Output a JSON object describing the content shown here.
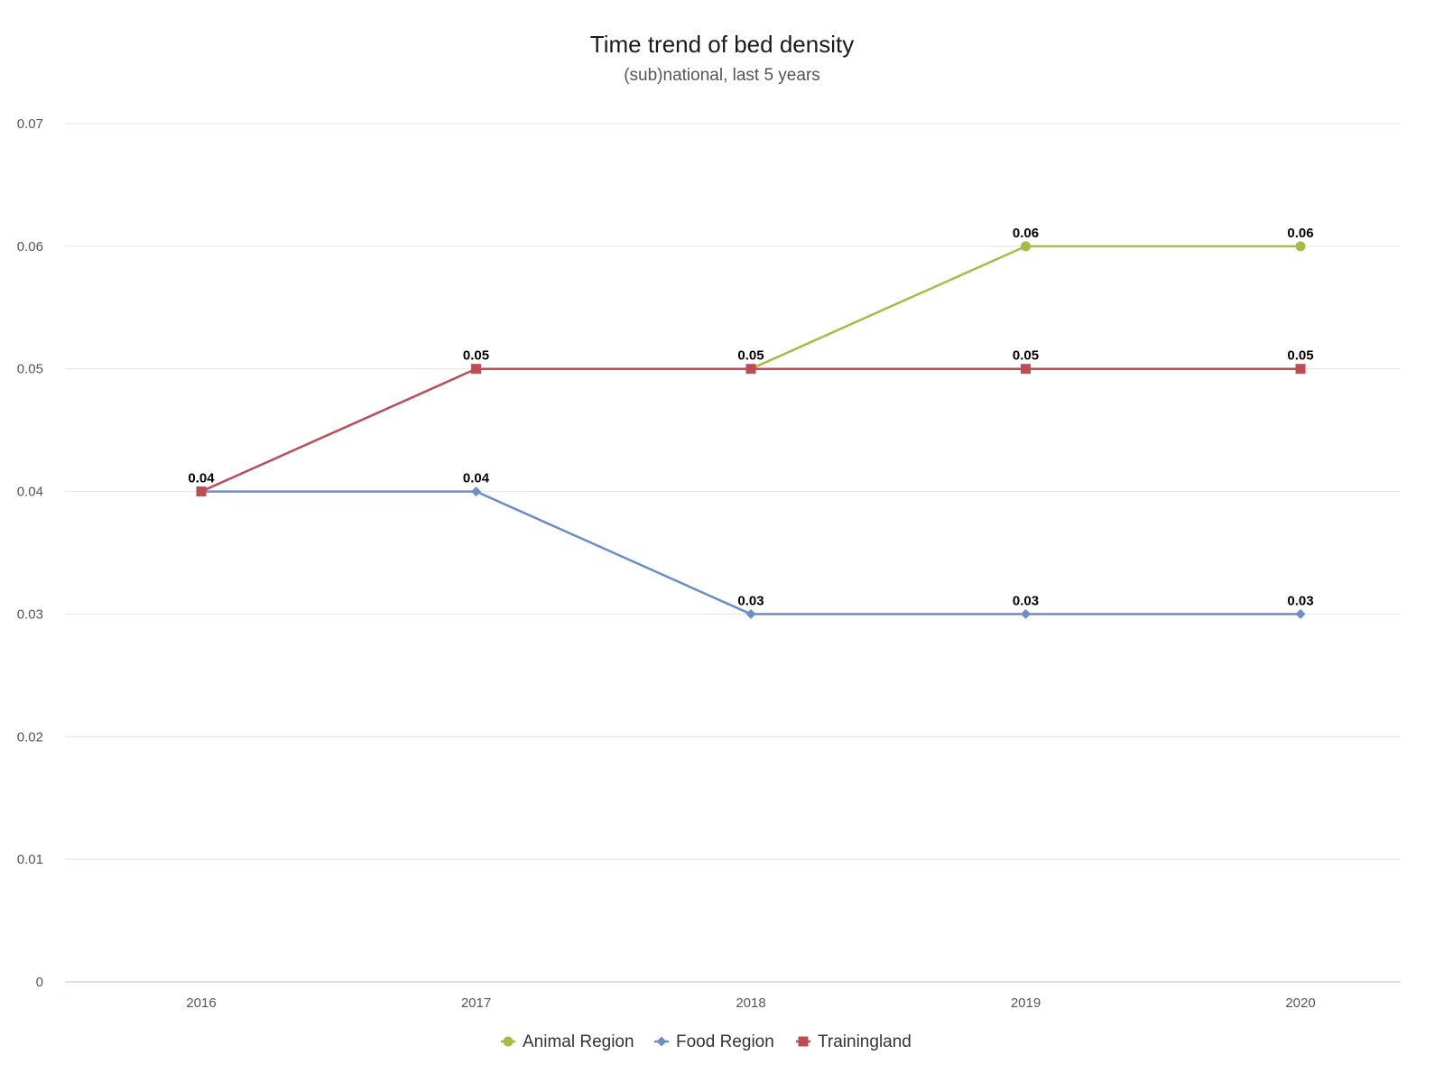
{
  "chart_data": {
    "type": "line",
    "title": "Time trend of bed density",
    "subtitle": "(sub)national, last 5 years",
    "xlabel": "",
    "ylabel": "",
    "categories": [
      "2016",
      "2017",
      "2018",
      "2019",
      "2020"
    ],
    "ylim": [
      0,
      0.07
    ],
    "yticks": [
      "0",
      "0.01",
      "0.02",
      "0.03",
      "0.04",
      "0.05",
      "0.06",
      "0.07"
    ],
    "grid": true,
    "legend_position": "bottom-center",
    "series": [
      {
        "name": "Animal Region",
        "color": "#a9ba45",
        "marker": "circle",
        "values": [
          null,
          null,
          0.05,
          0.06,
          0.06
        ],
        "labels": [
          null,
          null,
          null,
          "0.06",
          "0.06"
        ]
      },
      {
        "name": "Food Region",
        "color": "#6b8fc4",
        "marker": "diamond",
        "values": [
          0.04,
          0.04,
          0.03,
          0.03,
          0.03
        ],
        "labels": [
          null,
          "0.04",
          "0.03",
          "0.03",
          "0.03"
        ]
      },
      {
        "name": "Trainingland",
        "color": "#bf4b55",
        "marker": "square",
        "values": [
          0.04,
          0.05,
          0.05,
          0.05,
          0.05
        ],
        "labels": [
          "0.04",
          "0.05",
          "0.05",
          "0.05",
          "0.05"
        ]
      }
    ]
  }
}
